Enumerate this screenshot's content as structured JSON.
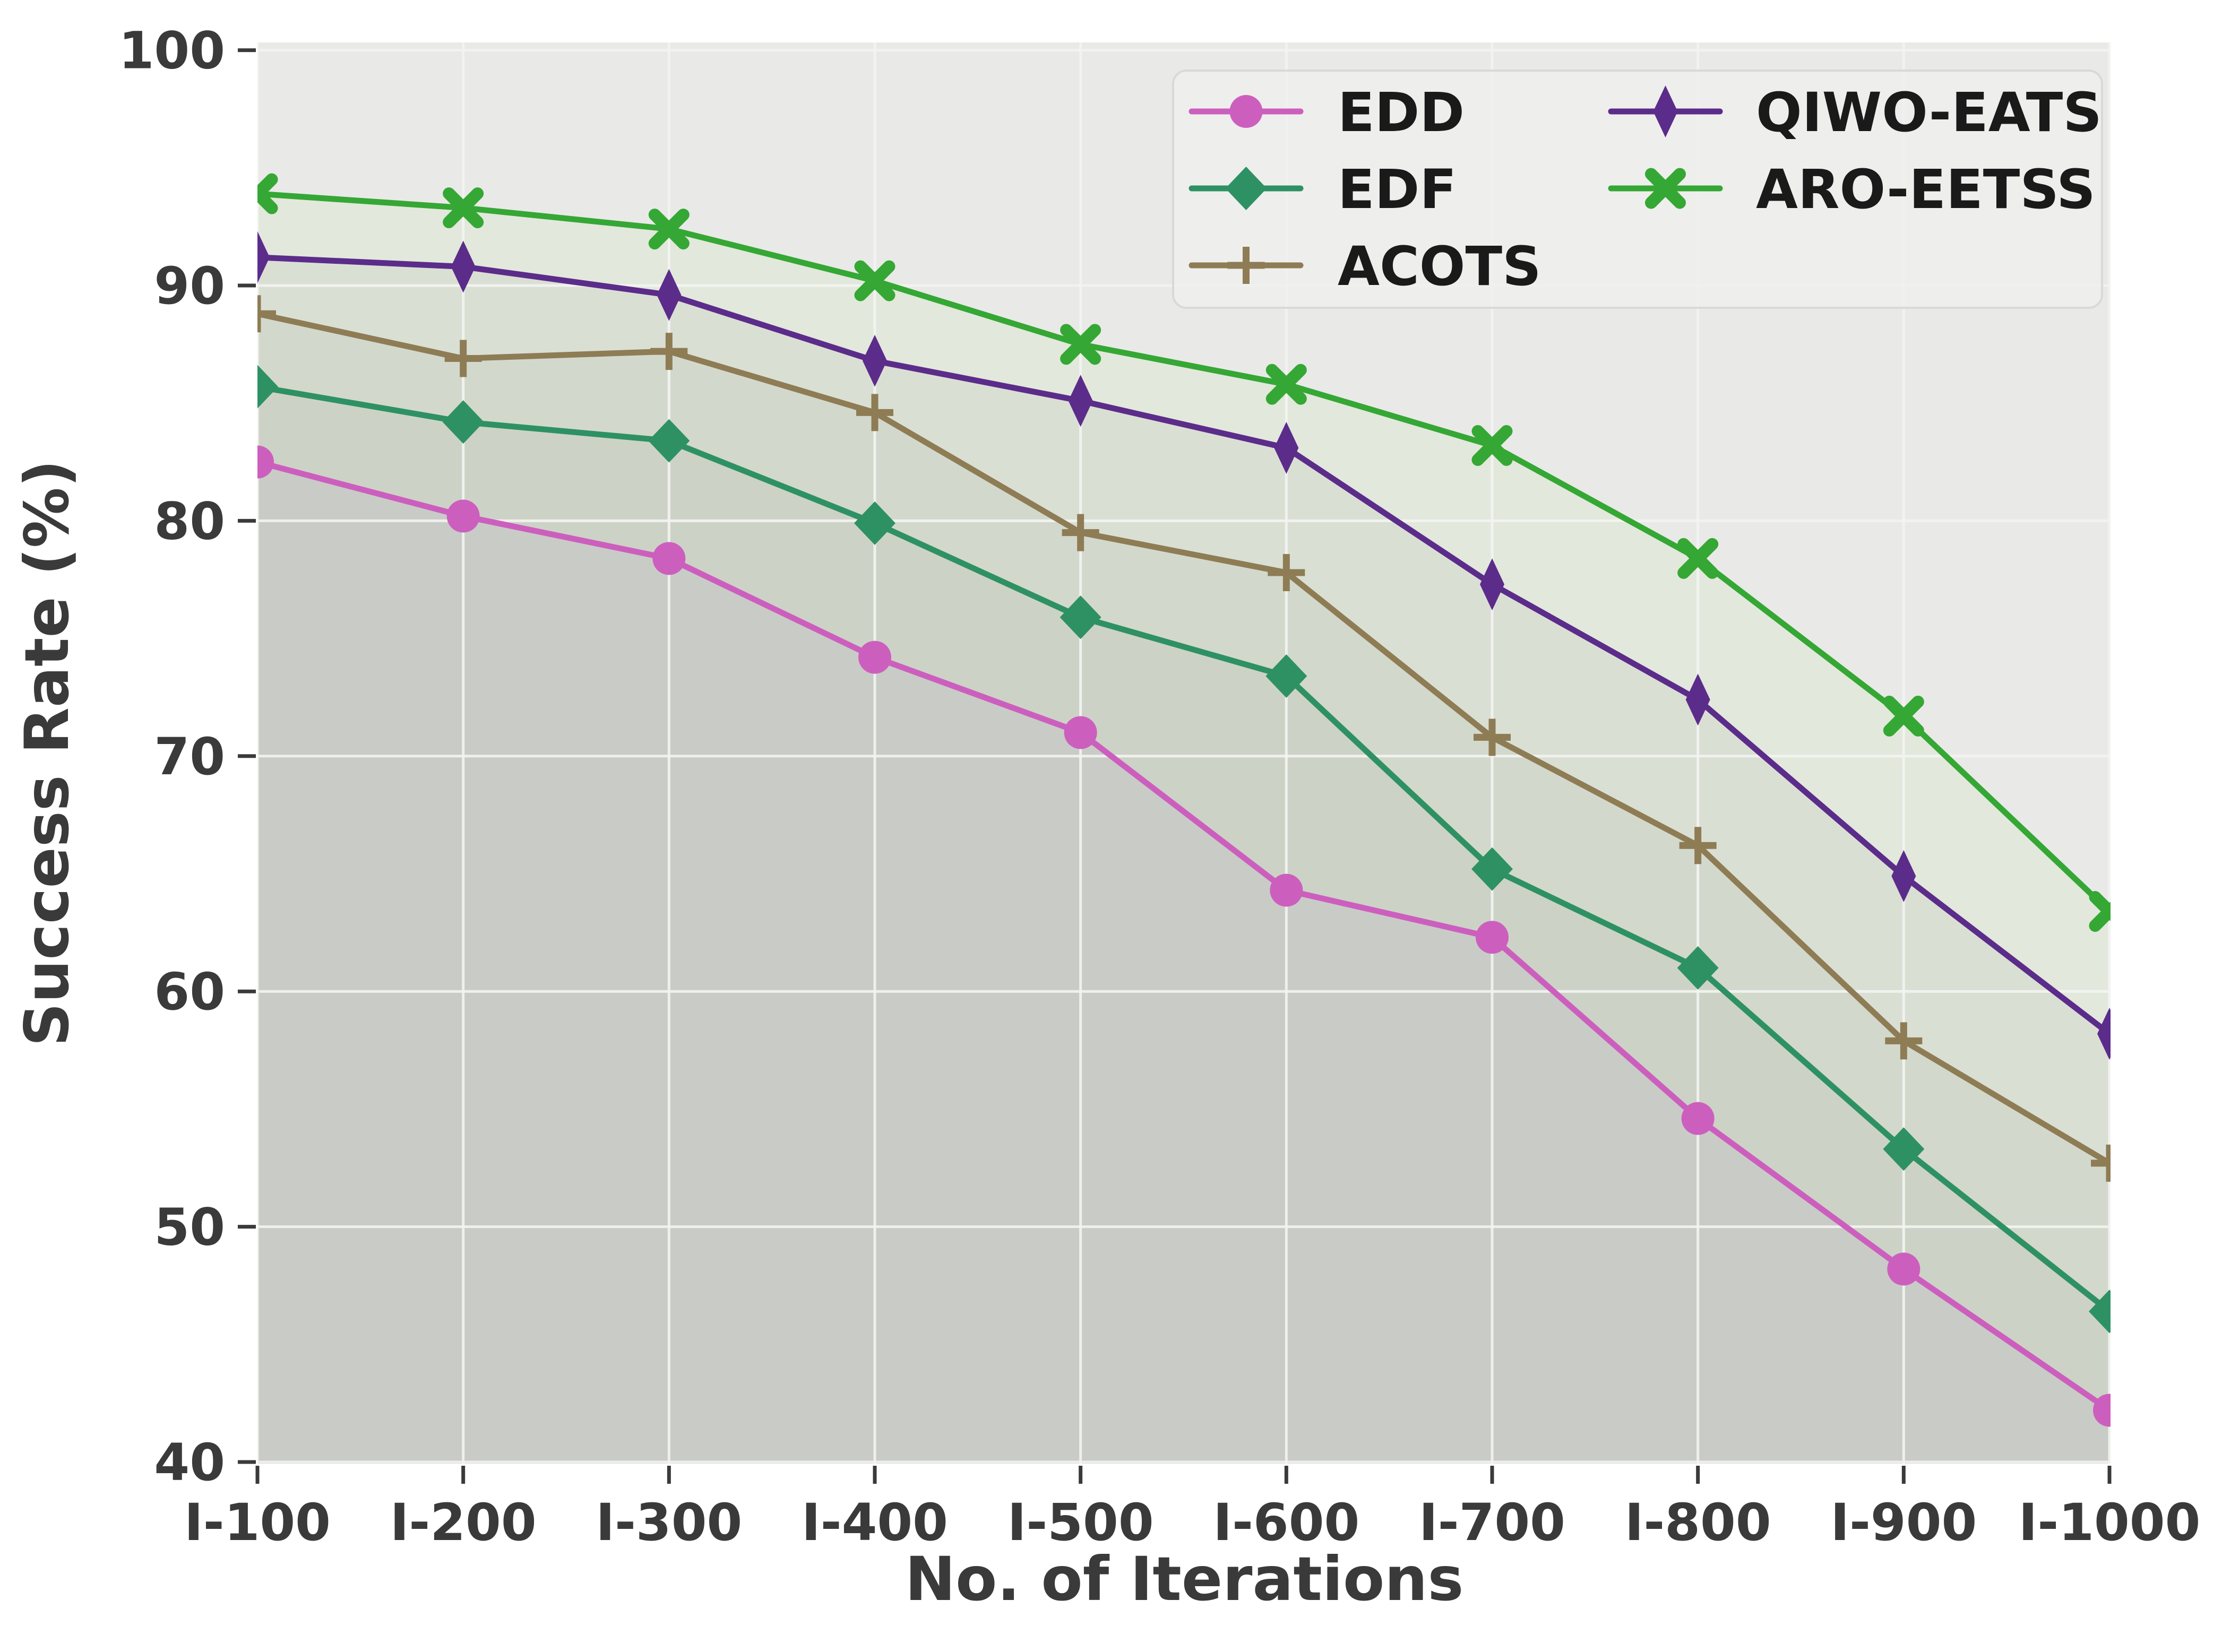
{
  "chart_data": {
    "type": "line",
    "title": "",
    "xlabel": "No. of Iterations",
    "ylabel": "Success Rate (%)",
    "categories": [
      "I-100",
      "I-200",
      "I-300",
      "I-400",
      "I-500",
      "I-600",
      "I-700",
      "I-800",
      "I-900",
      "I-1000"
    ],
    "series": [
      {
        "name": "EDD",
        "color": "#CC5FBE",
        "marker": "circle",
        "values": [
          82.5,
          80.2,
          78.4,
          74.2,
          71.0,
          64.3,
          62.3,
          54.6,
          48.2,
          42.2
        ]
      },
      {
        "name": "EDF",
        "color": "#2E9164",
        "marker": "diamond",
        "values": [
          85.7,
          84.2,
          83.4,
          79.9,
          75.9,
          73.4,
          65.2,
          61.0,
          53.3,
          46.4
        ]
      },
      {
        "name": "ACOTS",
        "color": "#8E7C55",
        "marker": "plus",
        "values": [
          88.8,
          86.9,
          87.2,
          84.6,
          79.5,
          77.8,
          70.8,
          66.2,
          57.9,
          52.7
        ]
      },
      {
        "name": "QIWO-EATS",
        "color": "#5B2C8A",
        "marker": "thin-diamond",
        "values": [
          91.2,
          90.8,
          89.6,
          86.8,
          85.1,
          83.1,
          77.3,
          72.4,
          64.9,
          58.2
        ]
      },
      {
        "name": "ARO-EETSS",
        "color": "#35A734",
        "marker": "x",
        "values": [
          93.9,
          93.3,
          92.4,
          90.2,
          87.5,
          85.8,
          83.2,
          78.4,
          71.7,
          63.4
        ]
      }
    ],
    "ylim": [
      40,
      100
    ],
    "yticks": [
      40,
      50,
      60,
      70,
      80,
      90,
      100
    ],
    "grid": "white major gridlines, both axes, on light gray panel",
    "area_fill": "each line filled to bottom, translucent gray-green stacked bands",
    "legend_position": "upper right inside plot, 2 columns",
    "legend_order": [
      [
        "EDD",
        "EDF",
        "ACOTS"
      ],
      [
        "QIWO-EATS",
        "ARO-EETSS"
      ]
    ]
  },
  "styles": {
    "figure_bg": "#ffffff",
    "panel_bg": "#e9e9e8",
    "gridline_color": "#f4f5f2",
    "tick_color": "#3a3a3a",
    "text_color": "#3a3a3a",
    "legend_bg": "#efefee",
    "legend_border": "#d9d9d7",
    "band_colors_top_to_bottom": [
      "#e2e8dc",
      "#dadfd4",
      "#d3d8cc",
      "#cdd2c7",
      "#c9cbc7"
    ]
  }
}
